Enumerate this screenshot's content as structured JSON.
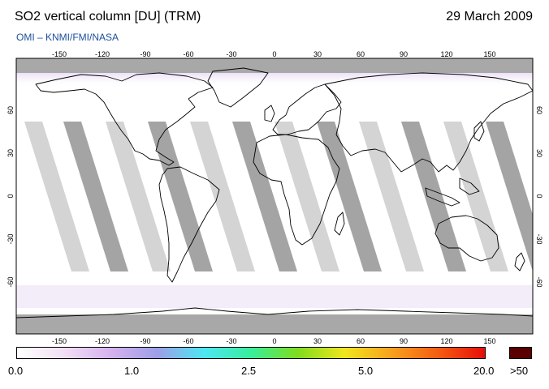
{
  "header": {
    "title": "SO2 vertical column [DU] (TRM)",
    "date": "29 March 2009",
    "credit": "OMI  –  KNMI/FMI/NASA"
  },
  "map": {
    "projection": "equirectangular",
    "lon_range": [
      -180,
      180
    ],
    "lat_range": [
      -90,
      90
    ],
    "lon_ticks": [
      "-150",
      "-120",
      "-90",
      "-60",
      "-30",
      "0",
      "30",
      "60",
      "90",
      "120",
      "150"
    ],
    "lat_ticks": [
      "60",
      "30",
      "0",
      "-30",
      "-60"
    ],
    "colors": {
      "background": "#ffffff",
      "no_data": "#a8a8a8",
      "orbit_gap_light": "#d4d4d4",
      "orbit_gap_dark": "#a4a4a4",
      "coastline": "#000000",
      "low_so2_tint": "#eadcf4"
    }
  },
  "colorbar": {
    "labels": [
      "0.0",
      "1.0",
      "2.5",
      "5.0",
      "20.0"
    ],
    "overflow_label": ">50",
    "stops": [
      "#ffffff",
      "#f1dff5",
      "#d6b2ee",
      "#9d9ee8",
      "#4fe6f2",
      "#38ee9c",
      "#7fdc1e",
      "#f0e61e",
      "#f7a21e",
      "#f45d12",
      "#e60e0a"
    ],
    "overflow_color": "#5a0000"
  }
}
